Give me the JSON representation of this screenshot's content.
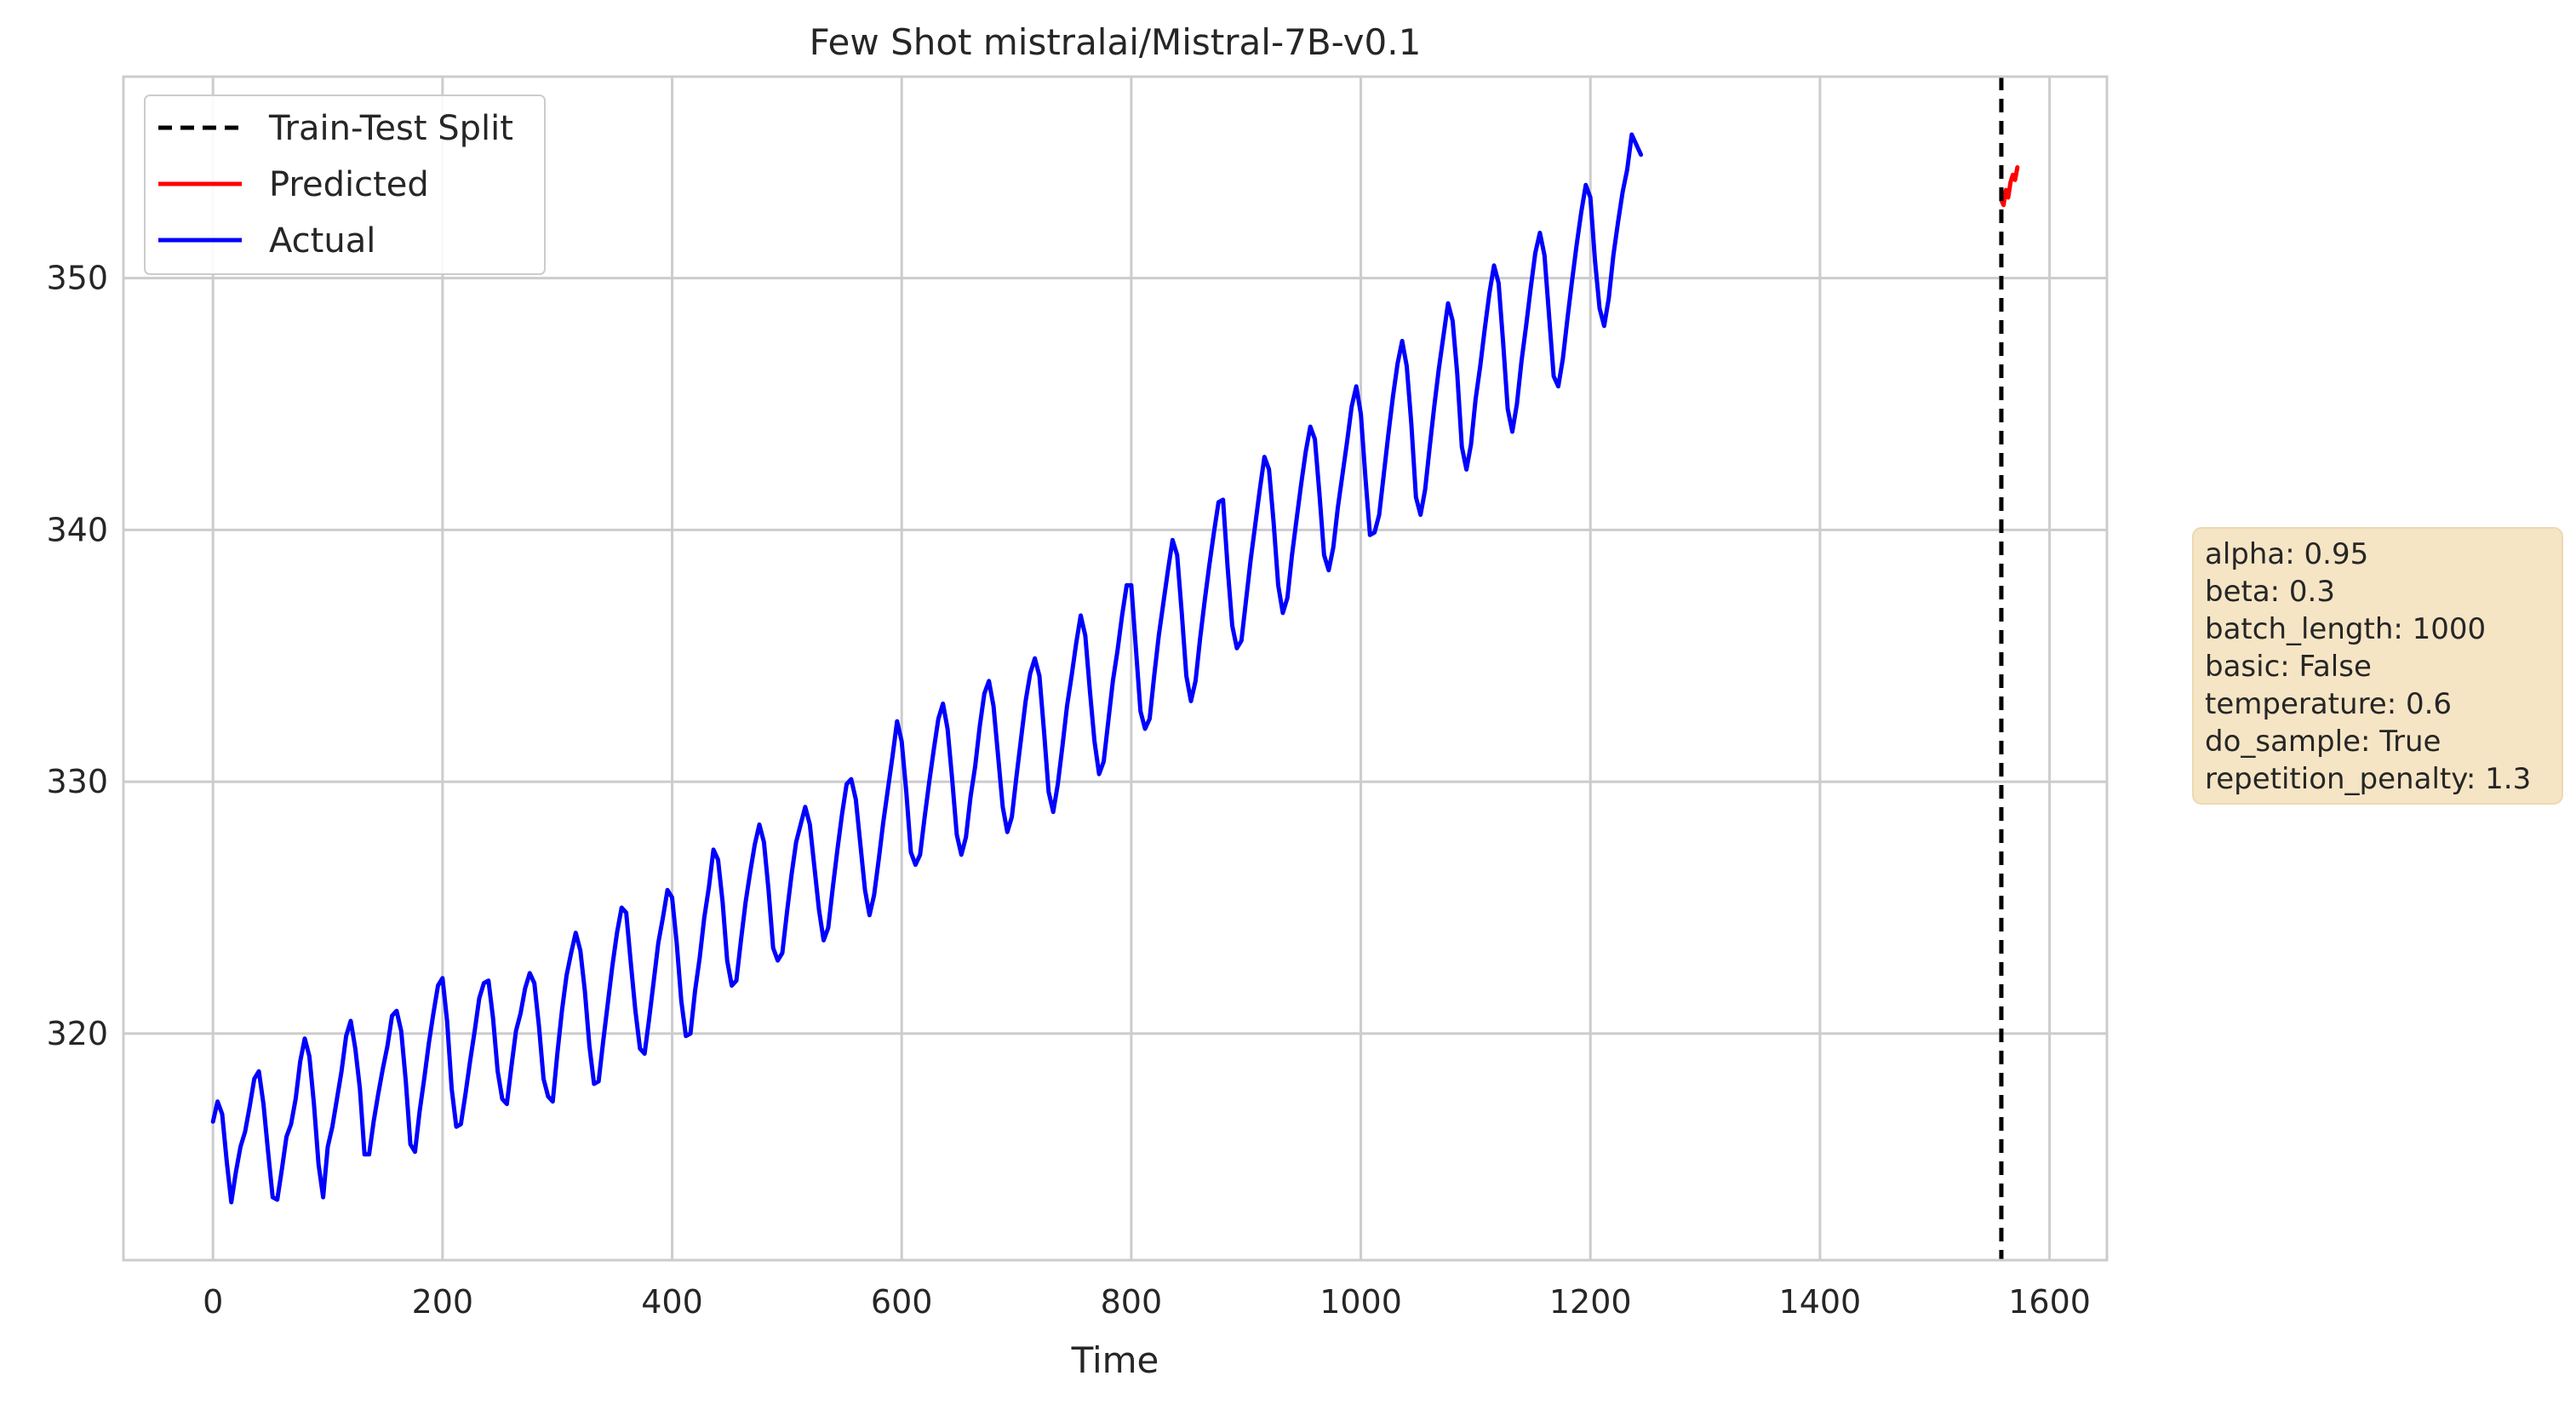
{
  "chart_data": {
    "type": "line",
    "title": "Few Shot mistralai/Mistral-7B-v0.1",
    "xlabel": "Time",
    "ylabel": "",
    "xlim": [
      -78,
      1650
    ],
    "ylim": [
      311,
      358
    ],
    "x_ticks": [
      0,
      200,
      400,
      600,
      800,
      1000,
      1200,
      1400,
      1600
    ],
    "y_ticks": [
      320,
      330,
      340,
      350
    ],
    "grid": true,
    "legend_position": "top-left",
    "legend": [
      {
        "label": "Train-Test Split",
        "color": "#000000",
        "style": "dashed"
      },
      {
        "label": "Predicted",
        "color": "#ff0000",
        "style": "solid"
      },
      {
        "label": "Actual",
        "color": "#0000ff",
        "style": "solid"
      }
    ],
    "split": {
      "name": "Train-Test Split",
      "x": 1558,
      "color": "#000000"
    },
    "series": [
      {
        "name": "Actual",
        "color": "#0000ff",
        "x_start": 0,
        "x_step": 4,
        "values": [
          316.5,
          317.3,
          316.8,
          314.9,
          313.3,
          314.5,
          315.5,
          316.1,
          317.1,
          318.2,
          318.5,
          317.2,
          315.3,
          313.5,
          313.4,
          314.6,
          315.9,
          316.4,
          317.4,
          318.9,
          319.8,
          319.1,
          317.2,
          314.8,
          313.5,
          315.5,
          316.3,
          317.4,
          318.5,
          319.9,
          320.5,
          319.4,
          317.8,
          315.2,
          315.2,
          316.5,
          317.6,
          318.6,
          319.5,
          320.7,
          320.9,
          320.1,
          318.1,
          315.6,
          315.3,
          316.9,
          318.2,
          319.6,
          320.8,
          321.9,
          322.2,
          320.5,
          317.8,
          316.3,
          316.4,
          317.6,
          318.9,
          320.1,
          321.4,
          322.0,
          322.1,
          320.6,
          318.5,
          317.4,
          317.2,
          318.7,
          320.1,
          320.8,
          321.8,
          322.4,
          322.0,
          320.3,
          318.2,
          317.5,
          317.3,
          319.2,
          320.9,
          322.3,
          323.2,
          324.0,
          323.3,
          321.7,
          319.5,
          318.0,
          318.1,
          319.7,
          321.2,
          322.7,
          324.0,
          325.0,
          324.8,
          322.8,
          320.9,
          319.4,
          319.2,
          320.6,
          322.1,
          323.6,
          324.6,
          325.7,
          325.4,
          323.6,
          321.3,
          319.9,
          320.0,
          321.7,
          323.0,
          324.6,
          325.8,
          327.3,
          326.9,
          325.2,
          322.9,
          321.9,
          322.1,
          323.7,
          325.2,
          326.4,
          327.5,
          328.3,
          327.6,
          325.7,
          323.4,
          322.9,
          323.2,
          324.8,
          326.3,
          327.6,
          328.3,
          329.0,
          328.3,
          326.6,
          324.9,
          323.7,
          324.2,
          325.8,
          327.3,
          328.7,
          329.9,
          330.1,
          329.3,
          327.5,
          325.7,
          324.7,
          325.5,
          326.9,
          328.4,
          329.7,
          331.0,
          332.4,
          331.6,
          329.6,
          327.2,
          326.7,
          327.1,
          328.6,
          330.0,
          331.3,
          332.5,
          333.1,
          332.1,
          330.1,
          327.9,
          327.1,
          327.8,
          329.4,
          330.6,
          332.2,
          333.5,
          334.0,
          333.0,
          331.0,
          329.0,
          328.0,
          328.6,
          330.2,
          331.7,
          333.2,
          334.3,
          334.9,
          334.2,
          332.0,
          329.6,
          328.8,
          329.9,
          331.4,
          333.0,
          334.2,
          335.5,
          336.6,
          335.8,
          333.6,
          331.6,
          330.3,
          330.8,
          332.4,
          334.0,
          335.2,
          336.6,
          337.8,
          337.8,
          335.3,
          332.8,
          332.1,
          332.5,
          334.2,
          335.8,
          337.1,
          338.4,
          339.6,
          339.0,
          336.7,
          334.2,
          333.2,
          334.0,
          335.7,
          337.2,
          338.6,
          339.9,
          341.1,
          341.2,
          338.5,
          336.2,
          335.3,
          335.6,
          337.2,
          338.8,
          340.2,
          341.6,
          342.9,
          342.4,
          340.3,
          337.8,
          336.7,
          337.3,
          339.0,
          340.4,
          341.8,
          343.1,
          344.1,
          343.6,
          341.4,
          339.0,
          338.4,
          339.3,
          340.9,
          342.2,
          343.5,
          344.9,
          345.7,
          344.6,
          342.1,
          339.8,
          339.9,
          340.6,
          342.2,
          343.8,
          345.3,
          346.6,
          347.5,
          346.5,
          344.2,
          341.3,
          340.6,
          341.6,
          343.3,
          344.9,
          346.4,
          347.7,
          349.0,
          348.3,
          346.2,
          343.3,
          342.4,
          343.4,
          345.2,
          346.5,
          348.0,
          349.4,
          350.5,
          349.8,
          347.4,
          344.8,
          343.9,
          345.0,
          346.7,
          348.1,
          349.6,
          351.0,
          351.8,
          350.9,
          348.5,
          346.1,
          345.7,
          346.8,
          348.4,
          349.9,
          351.3,
          352.6,
          353.7,
          353.2,
          350.7,
          348.8,
          348.1,
          349.2,
          350.9,
          352.2,
          353.4,
          354.3,
          355.7,
          355.3,
          354.9
        ]
      },
      {
        "name": "Predicted",
        "color": "#ff0000",
        "x": [
          1558,
          1560,
          1562,
          1564,
          1566,
          1568,
          1570,
          1572
        ],
        "values": [
          353.1,
          352.9,
          353.5,
          353.2,
          353.8,
          354.1,
          353.9,
          354.4
        ]
      }
    ]
  },
  "params": {
    "lines": [
      "alpha: 0.95",
      "beta: 0.3",
      "batch_length: 1000",
      "basic: False",
      "temperature: 0.6",
      "do_sample: True",
      "repetition_penalty: 1.3"
    ],
    "box_color": "#f5e5c5"
  }
}
